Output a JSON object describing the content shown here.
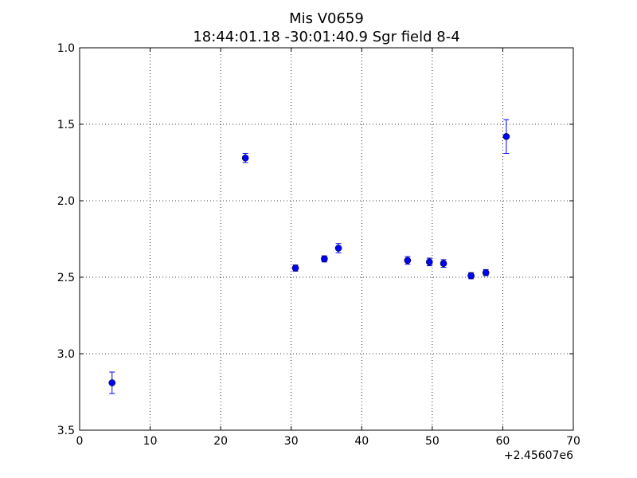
{
  "chart_data": {
    "type": "scatter",
    "title": "Mis V0659",
    "subtitle": "18:44:01.18 -30:01:40.9 Sgr field 8-4",
    "xlabel": "",
    "ylabel": "",
    "x_offset_label": "+2.45607e6",
    "xlim": [
      0,
      70
    ],
    "ylim": [
      1.0,
      3.5
    ],
    "y_inverted": true,
    "x_ticks": [
      0,
      10,
      20,
      30,
      40,
      50,
      60,
      70
    ],
    "x_tick_labels": [
      "0",
      "10",
      "20",
      "30",
      "40",
      "50",
      "60",
      "70"
    ],
    "y_ticks": [
      1.0,
      1.5,
      2.0,
      2.5,
      3.0,
      3.5
    ],
    "y_tick_labels": [
      "1.0",
      "1.5",
      "2.0",
      "2.5",
      "3.0",
      "3.5"
    ],
    "grid": true,
    "marker_color": "#0000ff",
    "series": [
      {
        "points": [
          {
            "x": 4.6,
            "y": 3.19,
            "err": 0.07
          },
          {
            "x": 23.5,
            "y": 1.72,
            "err": 0.03
          },
          {
            "x": 30.6,
            "y": 2.44,
            "err": 0.02
          },
          {
            "x": 34.7,
            "y": 2.38,
            "err": 0.02
          },
          {
            "x": 36.7,
            "y": 2.31,
            "err": 0.03
          },
          {
            "x": 46.5,
            "y": 2.39,
            "err": 0.025
          },
          {
            "x": 49.6,
            "y": 2.4,
            "err": 0.025
          },
          {
            "x": 51.6,
            "y": 2.41,
            "err": 0.025
          },
          {
            "x": 55.5,
            "y": 2.49,
            "err": 0.02
          },
          {
            "x": 57.6,
            "y": 2.47,
            "err": 0.02
          },
          {
            "x": 60.5,
            "y": 1.58,
            "err": 0.11
          }
        ]
      }
    ]
  }
}
